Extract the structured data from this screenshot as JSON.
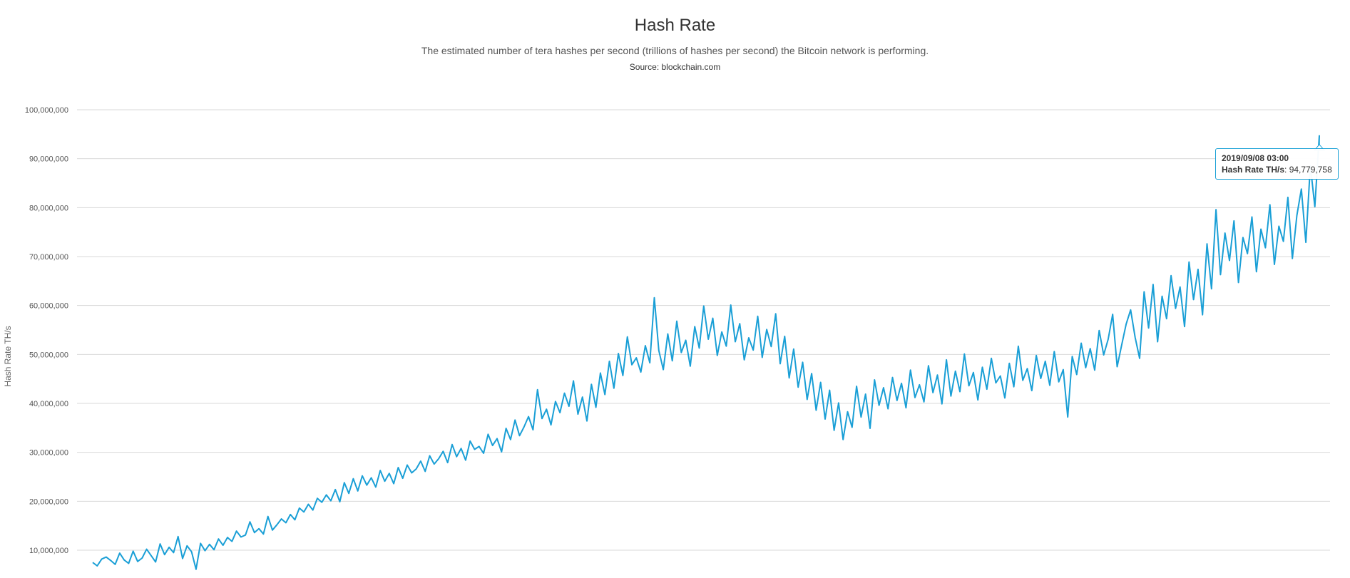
{
  "chart_data": {
    "type": "line",
    "title": "Hash Rate",
    "subtitle": "The estimated number of tera hashes per second (trillions of hashes per second) the Bitcoin network is performing.",
    "source": "Source: blockchain.com",
    "ylabel": "Hash Rate TH/s",
    "xlabel": "",
    "ylim": [
      0,
      100000000
    ],
    "yticks": [
      "10,000,000",
      "20,000,000",
      "30,000,000",
      "40,000,000",
      "50,000,000",
      "60,000,000",
      "70,000,000",
      "80,000,000",
      "90,000,000",
      "100,000,000"
    ],
    "grid": true,
    "line_color": "#1a9fd6",
    "series": [
      {
        "name": "Hash Rate TH/s",
        "values": [
          7500000,
          6800000,
          8200000,
          8600000,
          7900000,
          7100000,
          9400000,
          8000000,
          7300000,
          9800000,
          7700000,
          8400000,
          10200000,
          8900000,
          7600000,
          11300000,
          9100000,
          10600000,
          9500000,
          12800000,
          8300000,
          10900000,
          9700000,
          6100000,
          11400000,
          9900000,
          11200000,
          10100000,
          12300000,
          11000000,
          12600000,
          11800000,
          13900000,
          12700000,
          13100000,
          15800000,
          13600000,
          14400000,
          13300000,
          16900000,
          14100000,
          15200000,
          16400000,
          15600000,
          17300000,
          16200000,
          18600000,
          17800000,
          19400000,
          18200000,
          20600000,
          19800000,
          21300000,
          20100000,
          22400000,
          19900000,
          23800000,
          21600000,
          24600000,
          22100000,
          25200000,
          23300000,
          24800000,
          22900000,
          26300000,
          24100000,
          25700000,
          23600000,
          26900000,
          24700000,
          27400000,
          25800000,
          26600000,
          28200000,
          26100000,
          29300000,
          27600000,
          28700000,
          30200000,
          27900000,
          31600000,
          29100000,
          30800000,
          28400000,
          32300000,
          30600000,
          31200000,
          29800000,
          33700000,
          31400000,
          32800000,
          30100000,
          34900000,
          32600000,
          36600000,
          33400000,
          35200000,
          37300000,
          34600000,
          42800000,
          36900000,
          38800000,
          35600000,
          40400000,
          38100000,
          42100000,
          39400000,
          44600000,
          37800000,
          41300000,
          36400000,
          43900000,
          39200000,
          46200000,
          41800000,
          48600000,
          43100000,
          50200000,
          45700000,
          53600000,
          47900000,
          49300000,
          46400000,
          51800000,
          48300000,
          61600000,
          50800000,
          46900000,
          54200000,
          48700000,
          56800000,
          50400000,
          52900000,
          47600000,
          55700000,
          51300000,
          59900000,
          53100000,
          57400000,
          49800000,
          54600000,
          51700000,
          60100000,
          52600000,
          56300000,
          48900000,
          53400000,
          50900000,
          57800000,
          49400000,
          55100000,
          51600000,
          58300000,
          48100000,
          53700000,
          45200000,
          51100000,
          43300000,
          48400000,
          40800000,
          46100000,
          38600000,
          44300000,
          36800000,
          42700000,
          34500000,
          40100000,
          32600000,
          38300000,
          35100000,
          43500000,
          37200000,
          41900000,
          34900000,
          44800000,
          39600000,
          43200000,
          38900000,
          45300000,
          40600000,
          44100000,
          39100000,
          46800000,
          41200000,
          43800000,
          40300000,
          47700000,
          42200000,
          45800000,
          39900000,
          48900000,
          41500000,
          46600000,
          42400000,
          50100000,
          43600000,
          46300000,
          40700000,
          47400000,
          42900000,
          49200000,
          44200000,
          45600000,
          41100000,
          48200000,
          43400000,
          51700000,
          44700000,
          47100000,
          42600000,
          49800000,
          45100000,
          48600000,
          43700000,
          50600000,
          44400000,
          46900000,
          37200000,
          49600000,
          45900000,
          52300000,
          47300000,
          51200000,
          46800000,
          54900000,
          49900000,
          53100000,
          58200000,
          47500000,
          51900000,
          56200000,
          59100000,
          53500000,
          49200000,
          62800000,
          55400000,
          64300000,
          52600000,
          61900000,
          57300000,
          66100000,
          59400000,
          63800000,
          55700000,
          68900000,
          61200000,
          67400000,
          58100000,
          72600000,
          63400000,
          79600000,
          66300000,
          74800000,
          69200000,
          77300000,
          64700000,
          73900000,
          70600000,
          78100000,
          66900000,
          75600000,
          71800000,
          80600000,
          68400000,
          76200000,
          73100000,
          82100000,
          69600000,
          78400000,
          83800000,
          72900000,
          88600000,
          80200000,
          94779758
        ]
      }
    ]
  },
  "tooltip": {
    "date": "2019/09/08 03:00",
    "series_label": "Hash Rate TH/s",
    "value": "94,779,758"
  }
}
